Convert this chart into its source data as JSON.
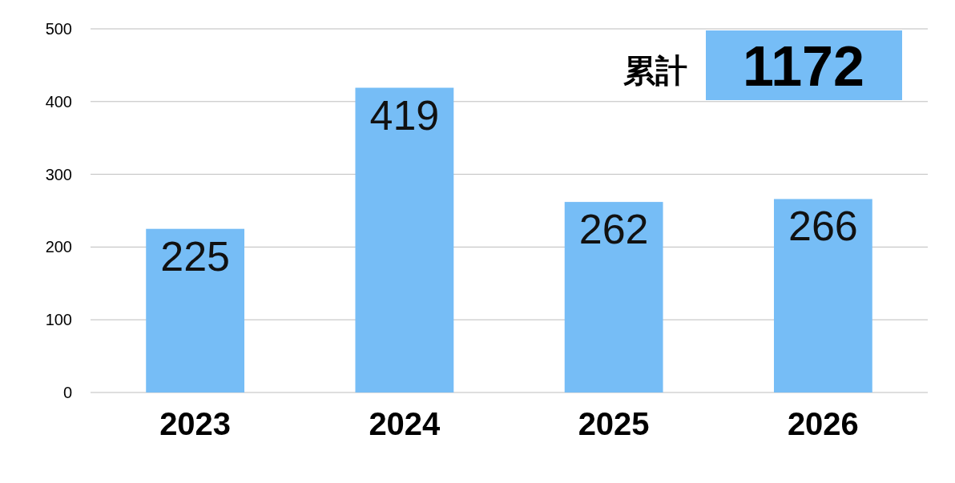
{
  "chart_data": {
    "type": "bar",
    "categories": [
      "2023",
      "2024",
      "2025",
      "2026"
    ],
    "values": [
      225,
      419,
      262,
      266
    ],
    "color": "#76bdf6",
    "ylim": [
      0,
      500
    ],
    "yticks": [
      0,
      100,
      200,
      300,
      400,
      500
    ],
    "grid": "y",
    "data_labels": true,
    "annotations": [
      "累計",
      "1172"
    ]
  }
}
